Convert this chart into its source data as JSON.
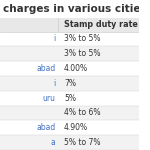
{
  "title": "charges in various cities",
  "col_header": "Stamp duty rate",
  "rows": [
    {
      "city": "i",
      "rate": "3% to 5%"
    },
    {
      "city": "",
      "rate": "3% to 5%"
    },
    {
      "city": "abad",
      "rate": "4.00%"
    },
    {
      "city": "i",
      "rate": "7%"
    },
    {
      "city": "uru",
      "rate": "5%"
    },
    {
      "city": "",
      "rate": "4% to 6%"
    },
    {
      "city": "abad",
      "rate": "4.90%"
    },
    {
      "city": "a",
      "rate": "5% to 7%"
    }
  ],
  "title_color": "#333333",
  "city_color": "#4472C4",
  "rate_color": "#333333",
  "header_color": "#333333",
  "bg_color": "#ffffff",
  "alt_row_color": "#f2f2f2",
  "header_bg_color": "#e8e8e8",
  "border_color": "#cccccc",
  "title_fontsize": 7.5,
  "cell_fontsize": 5.5,
  "header_fontsize": 5.8
}
